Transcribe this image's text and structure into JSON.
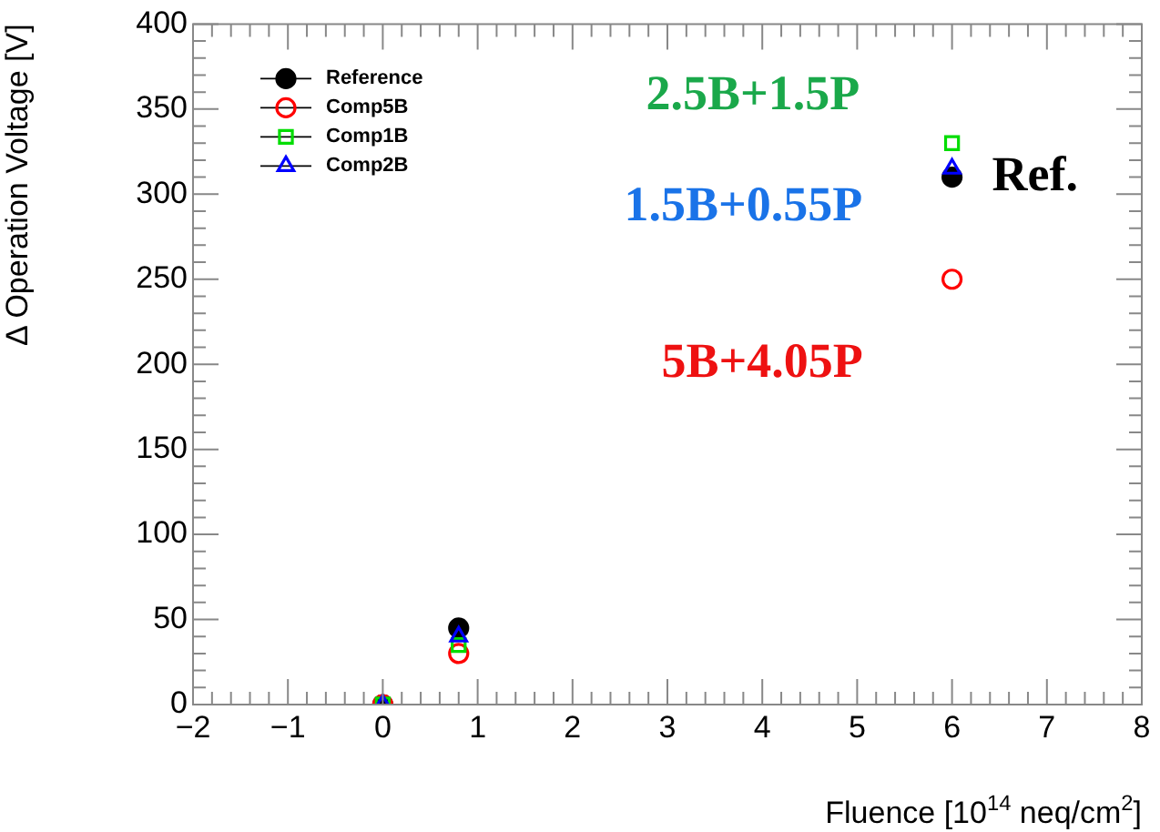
{
  "chart_data": {
    "type": "scatter",
    "xlabel": "Fluence [10$^{14}$ neq/cm$^{2}$]",
    "ylabel": "Δ Operation Voltage [V]",
    "x": [
      0,
      0.8,
      6
    ],
    "series": [
      {
        "name": "Reference",
        "color": "#000000",
        "marker": "circle",
        "values": [
          0,
          45,
          310
        ]
      },
      {
        "name": "Comp5B",
        "color": "#ff0000",
        "marker": "circle",
        "values": [
          0,
          30,
          250
        ]
      },
      {
        "name": "Comp1B",
        "color": "#00dd00",
        "marker": "square",
        "values": [
          0,
          35,
          330
        ]
      },
      {
        "name": "Comp2B",
        "color": "#0000ff",
        "marker": "triangle",
        "values": [
          0,
          40,
          315
        ]
      }
    ],
    "xlim": [
      -2,
      8
    ],
    "xticks": [
      -2,
      -1,
      0,
      1,
      2,
      3,
      4,
      5,
      6,
      7,
      8
    ],
    "ylim": [
      0,
      400
    ],
    "yticks": [
      0,
      50,
      100,
      150,
      200,
      250,
      300,
      350,
      400
    ],
    "grid": false,
    "legend": "top left",
    "annotations": [
      "2.5B+1.5P",
      "1.5B+0.55P",
      "5B+4.05P",
      {
        "text": "Ref.",
        "x": 6,
        "y": 310
      }
    ]
  }
}
